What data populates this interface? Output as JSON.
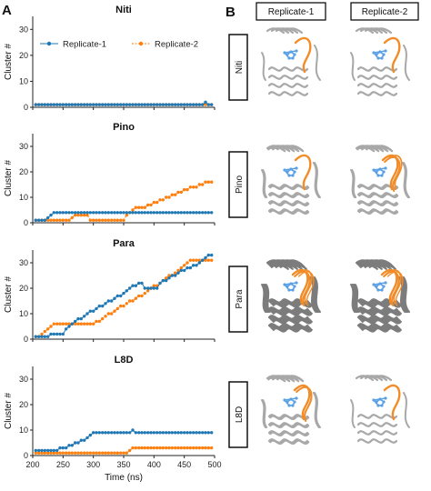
{
  "panels": {
    "a": "A",
    "b": "B"
  },
  "chart_data": [
    {
      "type": "line",
      "title": "Niti",
      "xlabel": "",
      "ylabel": "Cluster #",
      "xlim": [
        200,
        500
      ],
      "ylim": [
        0,
        35
      ],
      "xticks": [
        200,
        250,
        300,
        350,
        400,
        450,
        500
      ],
      "yticks": [
        0,
        10,
        20,
        30
      ],
      "legend": "top-left",
      "grid": false,
      "series": [
        {
          "name": "Replicate-1",
          "color": "#1f77b4",
          "x": [
            205,
            210,
            215,
            220,
            225,
            230,
            235,
            240,
            245,
            250,
            255,
            260,
            265,
            270,
            275,
            280,
            285,
            290,
            295,
            300,
            305,
            310,
            315,
            320,
            325,
            330,
            335,
            340,
            345,
            350,
            355,
            360,
            365,
            370,
            375,
            380,
            385,
            390,
            395,
            400,
            405,
            410,
            415,
            420,
            425,
            430,
            435,
            440,
            445,
            450,
            455,
            460,
            465,
            470,
            475,
            480,
            485,
            490,
            495
          ],
          "y": [
            1,
            1,
            1,
            1,
            1,
            1,
            1,
            1,
            1,
            1,
            1,
            1,
            1,
            1,
            1,
            1,
            1,
            1,
            1,
            1,
            1,
            1,
            1,
            1,
            1,
            1,
            1,
            1,
            1,
            1,
            1,
            1,
            1,
            1,
            1,
            1,
            1,
            1,
            1,
            1,
            1,
            1,
            1,
            1,
            1,
            1,
            1,
            1,
            1,
            1,
            1,
            1,
            1,
            1,
            1,
            1,
            2,
            1,
            1
          ]
        },
        {
          "name": "Replicate-2",
          "color": "#ff7f0e",
          "x": [
            205,
            210,
            215,
            220,
            225,
            230,
            235,
            240,
            245,
            250,
            255,
            260,
            265,
            270,
            275,
            280,
            285,
            290,
            295,
            300,
            305,
            310,
            315,
            320,
            325,
            330,
            335,
            340,
            345,
            350,
            355,
            360,
            365,
            370,
            375,
            380,
            385,
            390,
            395,
            400,
            405,
            410,
            415,
            420,
            425,
            430,
            435,
            440,
            445,
            450,
            455,
            460,
            465,
            470,
            475,
            480,
            485,
            490,
            495
          ],
          "y": [
            1,
            1,
            1,
            1,
            1,
            1,
            1,
            1,
            1,
            1,
            1,
            1,
            1,
            1,
            1,
            1,
            1,
            1,
            1,
            1,
            1,
            1,
            1,
            1,
            1,
            1,
            1,
            1,
            1,
            1,
            1,
            1,
            1,
            1,
            1,
            1,
            1,
            1,
            1,
            1,
            1,
            1,
            1,
            1,
            1,
            1,
            1,
            1,
            1,
            1,
            1,
            1,
            1,
            1,
            1,
            1,
            1,
            1,
            1
          ]
        }
      ]
    },
    {
      "type": "line",
      "title": "Pino",
      "xlabel": "",
      "ylabel": "Cluster #",
      "xlim": [
        200,
        500
      ],
      "ylim": [
        0,
        35
      ],
      "xticks": [
        200,
        250,
        300,
        350,
        400,
        450,
        500
      ],
      "yticks": [
        0,
        10,
        20,
        30
      ],
      "grid": false,
      "series": [
        {
          "name": "Replicate-1",
          "color": "#1f77b4",
          "x": [
            205,
            210,
            215,
            220,
            225,
            230,
            235,
            240,
            245,
            250,
            255,
            260,
            265,
            270,
            275,
            280,
            285,
            290,
            295,
            300,
            305,
            310,
            315,
            320,
            325,
            330,
            335,
            340,
            345,
            350,
            355,
            360,
            365,
            370,
            375,
            380,
            385,
            390,
            395,
            400,
            405,
            410,
            415,
            420,
            425,
            430,
            435,
            440,
            445,
            450,
            455,
            460,
            465,
            470,
            475,
            480,
            485,
            490,
            495
          ],
          "y": [
            1,
            1,
            1,
            1,
            2,
            3,
            4,
            4,
            4,
            4,
            4,
            4,
            4,
            4,
            4,
            4,
            4,
            4,
            4,
            4,
            4,
            4,
            4,
            4,
            4,
            4,
            4,
            4,
            4,
            4,
            4,
            4,
            4,
            4,
            4,
            4,
            4,
            4,
            4,
            4,
            4,
            4,
            4,
            4,
            4,
            4,
            4,
            4,
            4,
            4,
            4,
            4,
            4,
            4,
            4,
            4,
            4,
            4,
            4
          ]
        },
        {
          "name": "Replicate-2",
          "color": "#ff7f0e",
          "x": [
            205,
            210,
            215,
            220,
            225,
            230,
            235,
            240,
            245,
            250,
            255,
            260,
            265,
            270,
            275,
            280,
            285,
            290,
            295,
            300,
            305,
            310,
            315,
            320,
            325,
            330,
            335,
            340,
            345,
            350,
            355,
            360,
            365,
            370,
            375,
            380,
            385,
            390,
            395,
            400,
            405,
            410,
            415,
            420,
            425,
            430,
            435,
            440,
            445,
            450,
            455,
            460,
            465,
            470,
            475,
            480,
            485,
            490,
            495
          ],
          "y": [
            1,
            1,
            1,
            1,
            1,
            1,
            1,
            1,
            1,
            1,
            1,
            1,
            2,
            3,
            3,
            3,
            3,
            3,
            1,
            1,
            1,
            1,
            1,
            1,
            1,
            1,
            1,
            1,
            1,
            1,
            3,
            4,
            5,
            6,
            6,
            6,
            6,
            7,
            7,
            8,
            8,
            9,
            9,
            10,
            10,
            11,
            11,
            12,
            12,
            13,
            13,
            14,
            14,
            14,
            15,
            15,
            16,
            16,
            16
          ]
        }
      ]
    },
    {
      "type": "line",
      "title": "Para",
      "xlabel": "",
      "ylabel": "Cluster #",
      "xlim": [
        200,
        500
      ],
      "ylim": [
        0,
        35
      ],
      "xticks": [
        200,
        250,
        300,
        350,
        400,
        450,
        500
      ],
      "yticks": [
        0,
        10,
        20,
        30
      ],
      "grid": false,
      "series": [
        {
          "name": "Replicate-1",
          "color": "#1f77b4",
          "x": [
            205,
            210,
            215,
            220,
            225,
            230,
            235,
            240,
            245,
            250,
            255,
            260,
            265,
            270,
            275,
            280,
            285,
            290,
            295,
            300,
            305,
            310,
            315,
            320,
            325,
            330,
            335,
            340,
            345,
            350,
            355,
            360,
            365,
            370,
            375,
            380,
            385,
            390,
            395,
            400,
            405,
            410,
            415,
            420,
            425,
            430,
            435,
            440,
            445,
            450,
            455,
            460,
            465,
            470,
            475,
            480,
            485,
            490,
            495
          ],
          "y": [
            1,
            1,
            1,
            1,
            1,
            2,
            2,
            2,
            2,
            2,
            4,
            5,
            6,
            7,
            8,
            8,
            9,
            10,
            11,
            11,
            12,
            13,
            13,
            14,
            15,
            15,
            16,
            17,
            17,
            18,
            19,
            20,
            21,
            21,
            22,
            22,
            20,
            20,
            20,
            20,
            20,
            22,
            23,
            23,
            24,
            25,
            25,
            26,
            27,
            27,
            28,
            28,
            29,
            29,
            30,
            31,
            32,
            33,
            33
          ]
        },
        {
          "name": "Replicate-2",
          "color": "#ff7f0e",
          "x": [
            205,
            210,
            215,
            220,
            225,
            230,
            235,
            240,
            245,
            250,
            255,
            260,
            265,
            270,
            275,
            280,
            285,
            290,
            295,
            300,
            305,
            310,
            315,
            320,
            325,
            330,
            335,
            340,
            345,
            350,
            355,
            360,
            365,
            370,
            375,
            380,
            385,
            390,
            395,
            400,
            405,
            410,
            415,
            420,
            425,
            430,
            435,
            440,
            445,
            450,
            455,
            460,
            465,
            470,
            475,
            480,
            485,
            490,
            495
          ],
          "y": [
            1,
            1,
            2,
            3,
            4,
            5,
            6,
            6,
            6,
            6,
            6,
            6,
            6,
            6,
            6,
            6,
            6,
            6,
            6,
            6,
            7,
            7,
            8,
            9,
            10,
            10,
            11,
            12,
            13,
            13,
            14,
            15,
            15,
            16,
            17,
            17,
            18,
            19,
            20,
            21,
            21,
            22,
            23,
            24,
            25,
            25,
            26,
            27,
            28,
            29,
            30,
            31,
            31,
            31,
            31,
            31,
            31,
            31,
            31
          ]
        }
      ]
    },
    {
      "type": "line",
      "title": "L8D",
      "xlabel": "Time (ns)",
      "ylabel": "Cluster #",
      "xlim": [
        200,
        500
      ],
      "ylim": [
        0,
        35
      ],
      "xticks": [
        200,
        250,
        300,
        350,
        400,
        450,
        500
      ],
      "yticks": [
        0,
        10,
        20,
        30
      ],
      "grid": false,
      "series": [
        {
          "name": "Replicate-1",
          "color": "#1f77b4",
          "x": [
            205,
            210,
            215,
            220,
            225,
            230,
            235,
            240,
            245,
            250,
            255,
            260,
            265,
            270,
            275,
            280,
            285,
            290,
            295,
            300,
            305,
            310,
            315,
            320,
            325,
            330,
            335,
            340,
            345,
            350,
            355,
            360,
            365,
            370,
            375,
            380,
            385,
            390,
            395,
            400,
            405,
            410,
            415,
            420,
            425,
            430,
            435,
            440,
            445,
            450,
            455,
            460,
            465,
            470,
            475,
            480,
            485,
            490,
            495
          ],
          "y": [
            2,
            2,
            2,
            2,
            2,
            2,
            2,
            2,
            3,
            3,
            3,
            4,
            4,
            5,
            5,
            6,
            6,
            7,
            8,
            9,
            9,
            9,
            9,
            9,
            9,
            9,
            9,
            9,
            9,
            9,
            9,
            9,
            10,
            9,
            9,
            9,
            9,
            9,
            9,
            9,
            9,
            9,
            9,
            9,
            9,
            9,
            9,
            9,
            9,
            9,
            9,
            9,
            9,
            9,
            9,
            9,
            9,
            9,
            9
          ]
        },
        {
          "name": "Replicate-2",
          "color": "#ff7f0e",
          "x": [
            205,
            210,
            215,
            220,
            225,
            230,
            235,
            240,
            245,
            250,
            255,
            260,
            265,
            270,
            275,
            280,
            285,
            290,
            295,
            300,
            305,
            310,
            315,
            320,
            325,
            330,
            335,
            340,
            345,
            350,
            355,
            360,
            365,
            370,
            375,
            380,
            385,
            390,
            395,
            400,
            405,
            410,
            415,
            420,
            425,
            430,
            435,
            440,
            445,
            450,
            455,
            460,
            465,
            470,
            475,
            480,
            485,
            490,
            495
          ],
          "y": [
            1,
            1,
            1,
            1,
            1,
            1,
            1,
            1,
            1,
            1,
            1,
            1,
            1,
            1,
            1,
            1,
            1,
            1,
            1,
            1,
            1,
            1,
            1,
            1,
            1,
            1,
            1,
            1,
            1,
            1,
            1,
            2,
            3,
            3,
            3,
            3,
            3,
            3,
            3,
            3,
            3,
            3,
            3,
            3,
            3,
            3,
            3,
            3,
            3,
            3,
            3,
            3,
            3,
            3,
            3,
            3,
            3,
            3,
            3
          ]
        }
      ]
    }
  ],
  "structures": {
    "columns": [
      "Replicate-1",
      "Replicate-2"
    ],
    "rows": [
      "Niti",
      "Pino",
      "Para",
      "L8D"
    ],
    "colors": {
      "protein": "#9e9e9e",
      "loop": "#f28c28",
      "ligand": "#5aa0e6"
    }
  }
}
